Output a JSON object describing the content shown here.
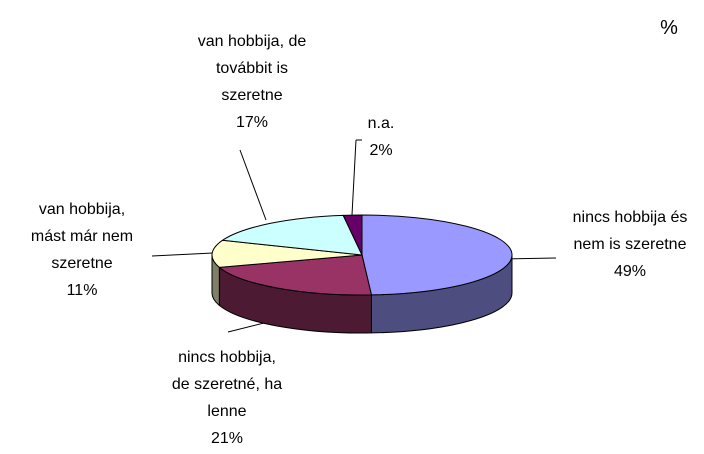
{
  "chart_data": {
    "type": "pie",
    "title": "%",
    "categories": [
      "nincs hobbija és\nnem is szeretne",
      "nincs hobbija,\nde szeretné, ha\nlenne",
      "van hobbija,\nmást már nem\nszeretne",
      "van hobbija, de\ntovábbit is\nszeretne",
      "n.a."
    ],
    "values": [
      49,
      21,
      11,
      17,
      2
    ],
    "value_labels": [
      "49%",
      "21%",
      "11%",
      "17%",
      "2%"
    ],
    "colors": [
      "#9999ff",
      "#993366",
      "#ffffcc",
      "#ccffff",
      "#660066"
    ]
  }
}
